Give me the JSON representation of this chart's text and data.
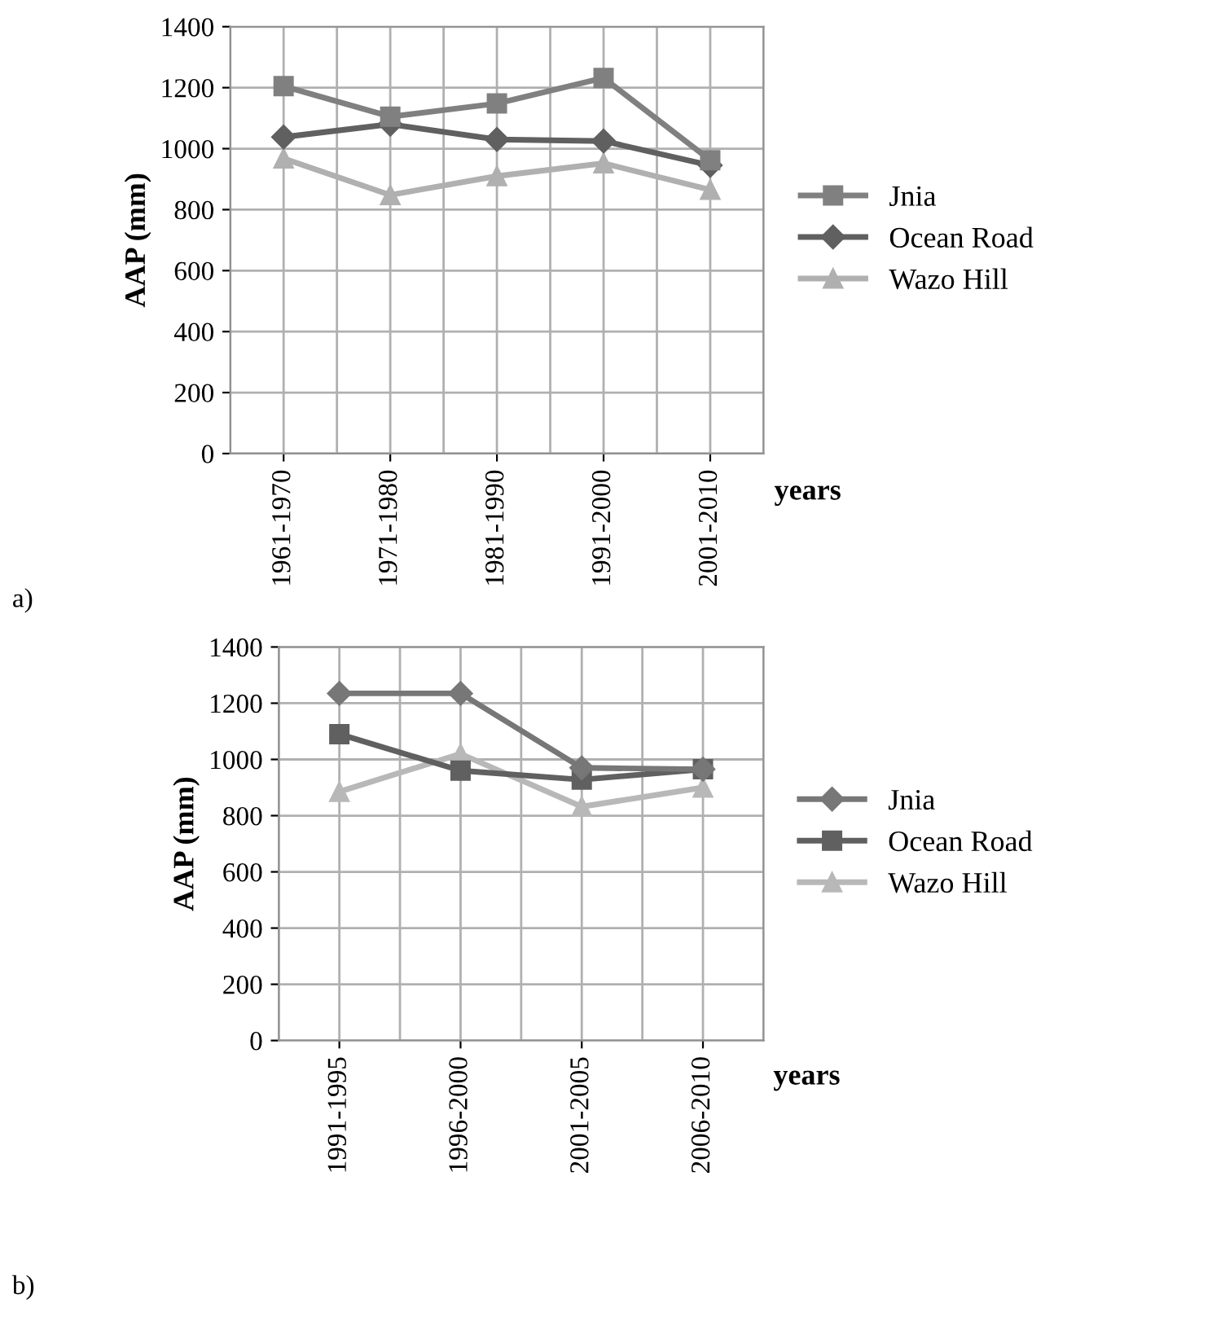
{
  "chart_data": [
    {
      "type": "line",
      "ylabel": "AAP (mm)",
      "xlabel": "years",
      "annotations": [
        "a)"
      ],
      "categories": [
        "1961-1970",
        "1971-1980",
        "1981-1990",
        "1991-2000",
        "2001-2010"
      ],
      "series": [
        {
          "name": "Jnia",
          "color": "#808080",
          "marker": "square",
          "values": [
            1205,
            1105,
            1148,
            1232,
            962
          ]
        },
        {
          "name": "Ocean Road",
          "color": "#606060",
          "marker": "diamond",
          "values": [
            1038,
            1080,
            1030,
            1025,
            945
          ]
        },
        {
          "name": "Wazo Hill",
          "color": "#b0b0b0",
          "marker": "triangle",
          "values": [
            968,
            848,
            910,
            952,
            865
          ]
        }
      ],
      "ylim": [
        0,
        1400
      ],
      "yticks": [
        0,
        200,
        400,
        600,
        800,
        1000,
        1200,
        1400
      ],
      "grid": true,
      "legend": "right"
    },
    {
      "type": "line",
      "ylabel": "AAP (mm)",
      "xlabel": "years",
      "annotations": [
        "b)"
      ],
      "categories": [
        "1991-1995",
        "1996-2000",
        "2001-2005",
        "2006-2010"
      ],
      "series": [
        {
          "name": "Jnia",
          "color": "#777777",
          "marker": "diamond",
          "values": [
            1235,
            1235,
            970,
            965
          ]
        },
        {
          "name": "Ocean Road",
          "color": "#606060",
          "marker": "square",
          "values": [
            1090,
            960,
            928,
            965
          ]
        },
        {
          "name": "Wazo Hill",
          "color": "#b8b8b8",
          "marker": "triangle",
          "values": [
            885,
            1020,
            832,
            900
          ]
        }
      ],
      "ylim": [
        0,
        1400
      ],
      "yticks": [
        0,
        200,
        400,
        600,
        800,
        1000,
        1200,
        1400
      ],
      "grid": true,
      "legend": "right"
    }
  ]
}
